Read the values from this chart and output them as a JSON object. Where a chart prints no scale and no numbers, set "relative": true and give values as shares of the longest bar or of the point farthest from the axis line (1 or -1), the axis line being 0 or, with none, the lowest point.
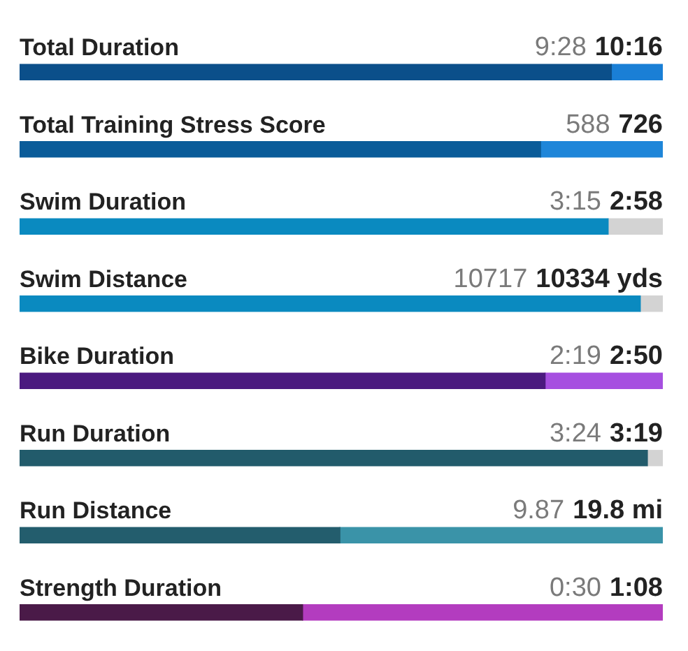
{
  "chart_data": {
    "type": "bar",
    "orientation": "horizontal",
    "stacked": true,
    "relative": true,
    "legend": false,
    "categories": [
      "Total Duration",
      "Total Training Stress Score",
      "Swim Duration",
      "Swim Distance",
      "Bike Duration",
      "Run Duration",
      "Run Distance",
      "Strength Duration"
    ],
    "annotations": [
      "9:28",
      "10:16",
      "588",
      "726",
      "3:15",
      "2:58",
      "10717",
      "10334 yds",
      "2:19",
      "2:50",
      "3:24",
      "3:19",
      "9.87",
      "19.8 mi",
      "0:30",
      "1:08"
    ],
    "series": [
      {
        "colors": [
          "#0b4f8a",
          "#0b5c99",
          "#0a8ac0",
          "#0a8ac0",
          "#4b1a7f",
          "#225b6b",
          "#235d6d",
          "#4a1a48"
        ],
        "values": [
          0.92,
          0.81,
          0.915,
          0.965,
          0.817,
          0.976,
          0.498,
          0.44
        ]
      },
      {
        "colors": [
          "#1a7fd6",
          "#1f86d9",
          "#d3d3d3",
          "#d3d3d3",
          "#a64fe0",
          "#d3d3d3",
          "#3a93a8",
          "#b33cbf"
        ],
        "values": [
          0.08,
          0.19,
          0.085,
          0.035,
          0.183,
          0.024,
          0.502,
          0.56
        ]
      }
    ]
  }
}
